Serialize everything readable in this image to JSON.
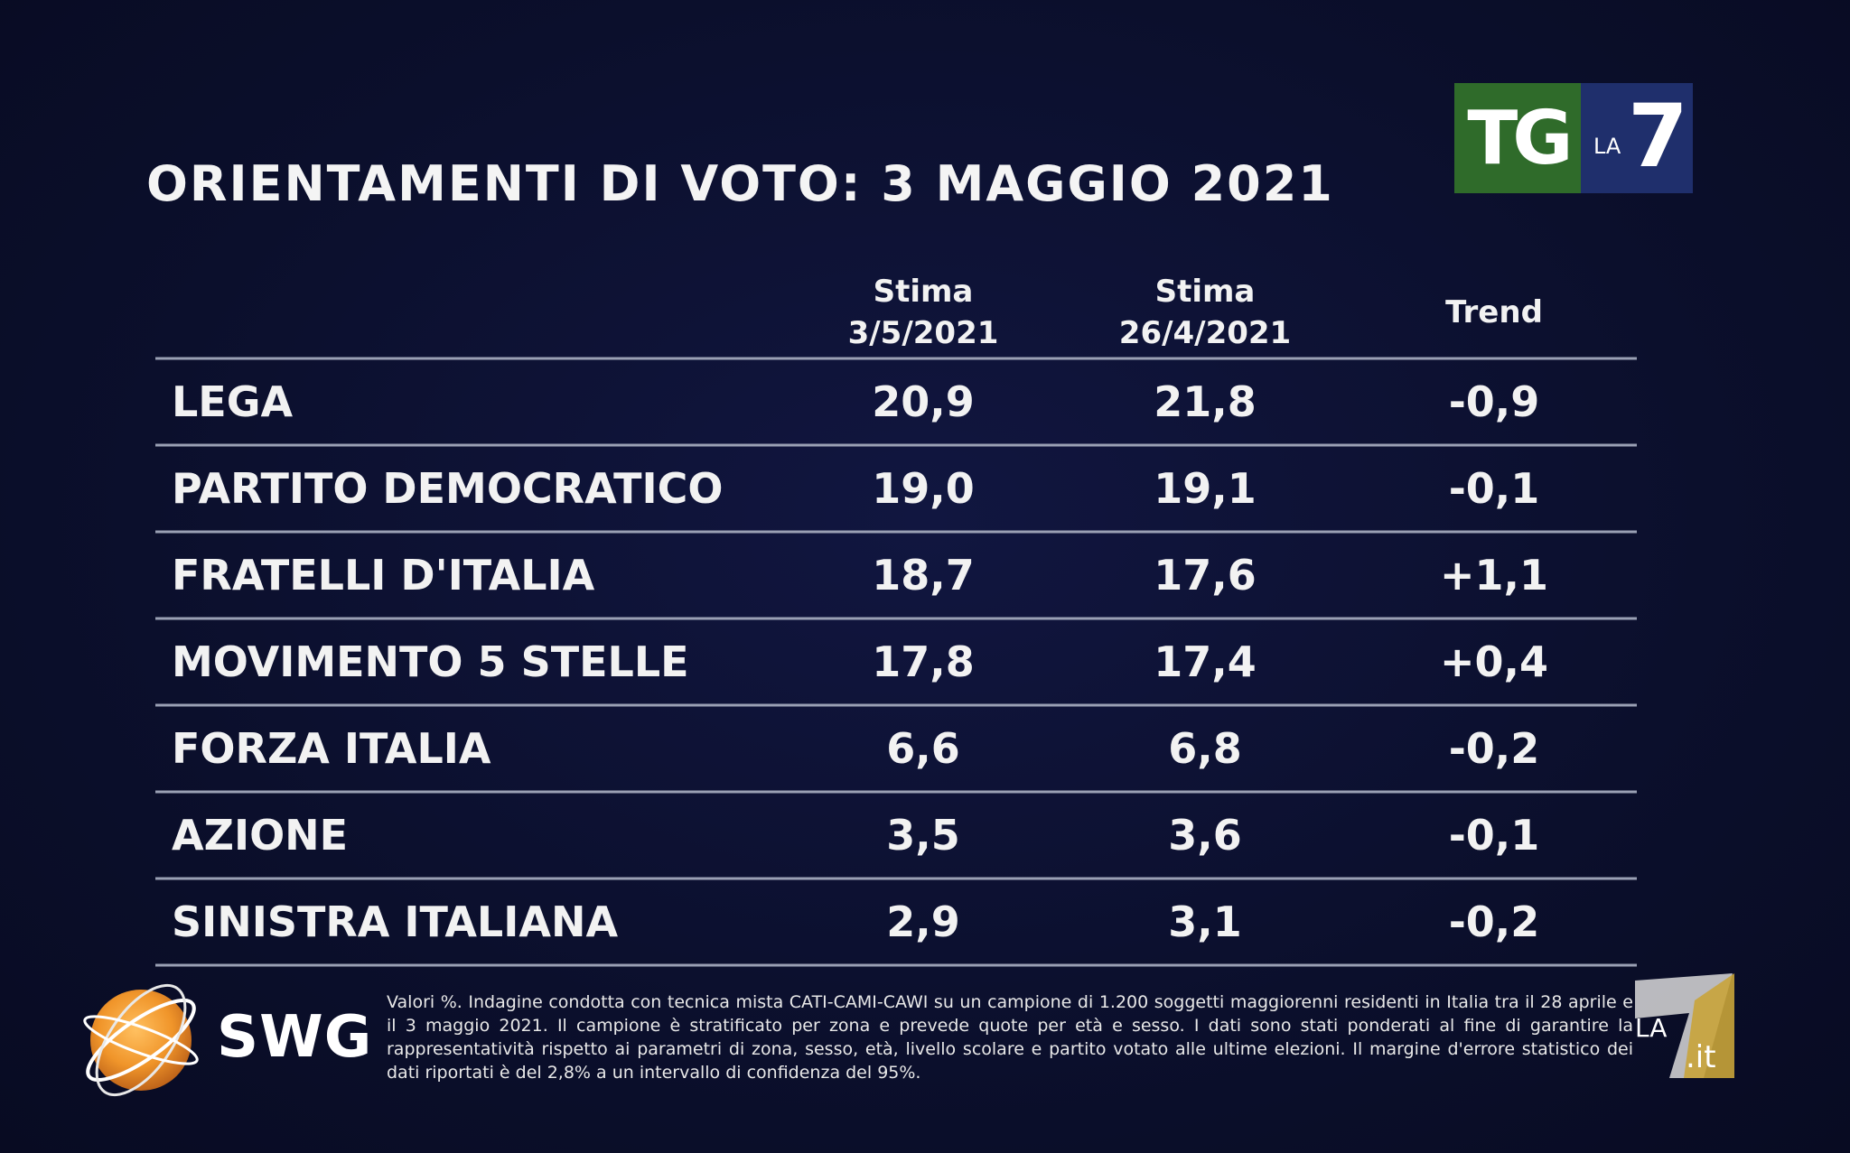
{
  "brand": {
    "tg_text": "TG",
    "la_text": "LA",
    "seven_text": "7",
    "swg_text": "SWG",
    "la7it_la": "LA",
    "la7it_it": ".it"
  },
  "colors": {
    "background": "#0b0f2c",
    "text": "#f2f2f2",
    "rule": "#9aa0b4",
    "tg_green": "#2f6b2a",
    "tg_blue": "#1f2f6c",
    "swg_orange": "#f0952a",
    "la7_gold": "#c9a43a"
  },
  "footnote": "Valori %. Indagine condotta con tecnica mista CATI-CAMI-CAWI su un campione di 1.200 soggetti maggiorenni residenti in Italia tra il 28 aprile e il 3 maggio 2021. Il campione è stratificato per zona e prevede quote per età e sesso. I dati sono stati ponderati al fine di garantire la rappresentatività rispetto ai parametri di zona, sesso, età, livello scolare e partito votato alle ultime elezioni. Il margine d'errore statistico dei dati riportati è del 2,8% a un intervallo di confidenza del 95%.",
  "chart_data": {
    "type": "table",
    "title": "ORIENTAMENTI DI VOTO: 3 MAGGIO 2021",
    "columns": [
      {
        "line1": "Stima",
        "line2": "3/5/2021"
      },
      {
        "line1": "Stima",
        "line2": "26/4/2021"
      },
      {
        "line1": "",
        "line2": "Trend"
      }
    ],
    "rows": [
      {
        "party": "LEGA",
        "current": "20,9",
        "previous": "21,8",
        "trend": "-0,9"
      },
      {
        "party": "PARTITO DEMOCRATICO",
        "current": "19,0",
        "previous": "19,1",
        "trend": "-0,1"
      },
      {
        "party": "FRATELLI D'ITALIA",
        "current": "18,7",
        "previous": "17,6",
        "trend": "+1,1"
      },
      {
        "party": "MOVIMENTO 5 STELLE",
        "current": "17,8",
        "previous": "17,4",
        "trend": "+0,4"
      },
      {
        "party": "FORZA ITALIA",
        "current": "6,6",
        "previous": "6,8",
        "trend": "-0,2"
      },
      {
        "party": "AZIONE",
        "current": "3,5",
        "previous": "3,6",
        "trend": "-0,1"
      },
      {
        "party": "SINISTRA ITALIANA",
        "current": "2,9",
        "previous": "3,1",
        "trend": "-0,2"
      }
    ]
  }
}
